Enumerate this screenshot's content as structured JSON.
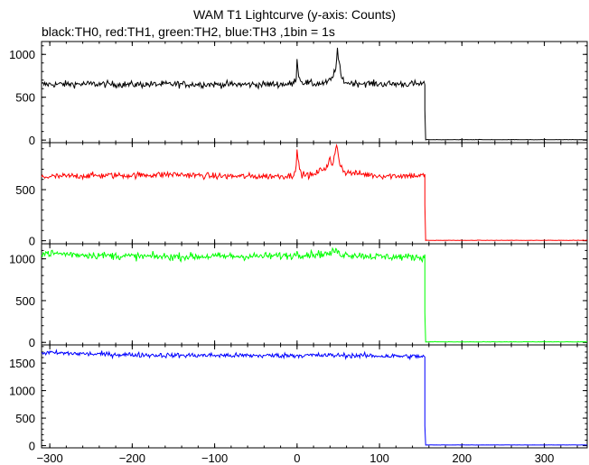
{
  "chart_data": {
    "type": "line",
    "title": "WAM T1 Lightcurve (y-axis: Counts)",
    "subtitle": "black:TH0, red:TH1, green:TH2, blue:TH3 ,1bin = 1s",
    "xlim": [
      -310,
      352
    ],
    "x_ticks": [
      -300,
      -200,
      -100,
      0,
      100,
      200,
      300
    ],
    "x_tick_labels": [
      "−300",
      "−200",
      "−100",
      "0",
      "100",
      "200",
      "300"
    ],
    "grid": false,
    "bin_seconds": 1,
    "series": [
      {
        "name": "TH0",
        "color": "#000000",
        "ylim": [
          -30,
          1150
        ],
        "y_ticks": [
          0,
          500,
          1000
        ],
        "baseline": 650,
        "noise": 28,
        "cutoff_x": 155,
        "after_value": 3,
        "points": [
          [
            -310,
            650
          ],
          [
            -250,
            655
          ],
          [
            -200,
            648
          ],
          [
            -150,
            652
          ],
          [
            -100,
            650
          ],
          [
            -50,
            648
          ],
          [
            -5,
            655
          ],
          [
            -1,
            720
          ],
          [
            0,
            980
          ],
          [
            1,
            800
          ],
          [
            5,
            680
          ],
          [
            20,
            655
          ],
          [
            35,
            665
          ],
          [
            43,
            720
          ],
          [
            48,
            900
          ],
          [
            49,
            1080
          ],
          [
            50,
            950
          ],
          [
            54,
            720
          ],
          [
            60,
            668
          ],
          [
            100,
            655
          ],
          [
            150,
            655
          ],
          [
            154,
            655
          ]
        ]
      },
      {
        "name": "TH1",
        "color": "#ff0000",
        "ylim": [
          -30,
          960
        ],
        "y_ticks": [
          0,
          500
        ],
        "baseline": 635,
        "noise": 22,
        "cutoff_x": 155,
        "after_value": 2,
        "points": [
          [
            -310,
            625
          ],
          [
            -250,
            638
          ],
          [
            -200,
            640
          ],
          [
            -150,
            650
          ],
          [
            -100,
            632
          ],
          [
            -50,
            630
          ],
          [
            -5,
            635
          ],
          [
            -1,
            740
          ],
          [
            0,
            890
          ],
          [
            1,
            780
          ],
          [
            5,
            650
          ],
          [
            20,
            640
          ],
          [
            30,
            700
          ],
          [
            36,
            720
          ],
          [
            40,
            800
          ],
          [
            43,
            720
          ],
          [
            48,
            950
          ],
          [
            49,
            900
          ],
          [
            52,
            750
          ],
          [
            58,
            670
          ],
          [
            100,
            635
          ],
          [
            154,
            638
          ]
        ]
      },
      {
        "name": "TH2",
        "color": "#00ff00",
        "ylim": [
          -30,
          1180
        ],
        "y_ticks": [
          0,
          500,
          1000
        ],
        "baseline": 1030,
        "noise": 32,
        "cutoff_x": 155,
        "after_value": 5,
        "points": [
          [
            -310,
            1070
          ],
          [
            -250,
            1045
          ],
          [
            -200,
            1030
          ],
          [
            -150,
            1025
          ],
          [
            -100,
            1030
          ],
          [
            -50,
            1030
          ],
          [
            -1,
            1040
          ],
          [
            0,
            1130
          ],
          [
            1,
            1050
          ],
          [
            40,
            1060
          ],
          [
            48,
            1110
          ],
          [
            50,
            1060
          ],
          [
            100,
            1025
          ],
          [
            154,
            1020
          ]
        ]
      },
      {
        "name": "TH3",
        "color": "#0000ff",
        "ylim": [
          -40,
          1830
        ],
        "y_ticks": [
          0,
          500,
          1000,
          1500
        ],
        "baseline": 1640,
        "noise": 32,
        "cutoff_x": 155,
        "after_value": 10,
        "points": [
          [
            -310,
            1690
          ],
          [
            -250,
            1665
          ],
          [
            -200,
            1650
          ],
          [
            -150,
            1640
          ],
          [
            -100,
            1640
          ],
          [
            -50,
            1635
          ],
          [
            0,
            1640
          ],
          [
            50,
            1640
          ],
          [
            100,
            1630
          ],
          [
            154,
            1620
          ]
        ]
      }
    ]
  }
}
